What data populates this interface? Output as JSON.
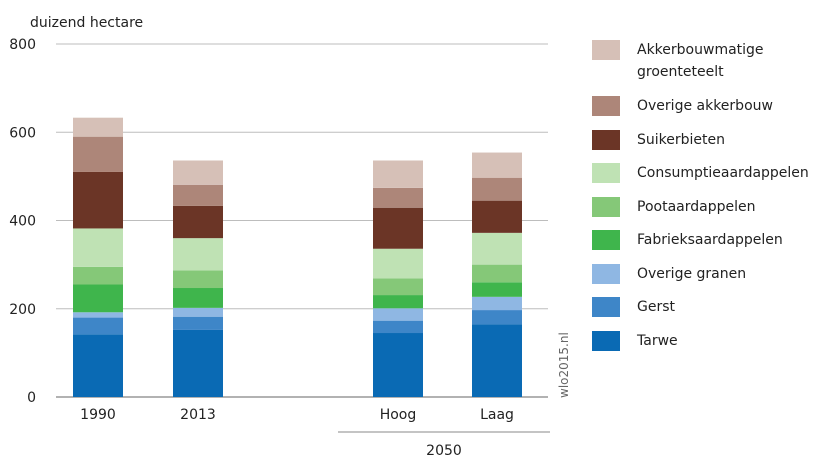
{
  "chart_data": {
    "type": "bar",
    "stacked": true,
    "ylabel": "duizend hectare",
    "ylim": [
      0,
      800
    ],
    "yticks": [
      "0",
      "200",
      "400",
      "600",
      "800"
    ],
    "categories": [
      "1990",
      "2013",
      "Hoog",
      "Laag"
    ],
    "group_label": "2050",
    "grid": true,
    "legend_position": "right",
    "source": "wlo2015.nl",
    "series": [
      {
        "name": "Tarwe",
        "color": "#0a6ab4",
        "values": [
          142,
          152,
          145,
          165
        ]
      },
      {
        "name": "Gerst",
        "color": "#3e86c8",
        "values": [
          38,
          30,
          28,
          32
        ]
      },
      {
        "name": "Overige granen",
        "color": "#8fb7e3",
        "values": [
          12,
          20,
          28,
          30
        ]
      },
      {
        "name": "Fabrieksaardappelen",
        "color": "#3fb54c",
        "values": [
          63,
          45,
          30,
          33
        ]
      },
      {
        "name": "Pootaardappelen",
        "color": "#85c878",
        "values": [
          40,
          40,
          38,
          40
        ]
      },
      {
        "name": "Consumptieaardappelen",
        "color": "#bfe2b4",
        "values": [
          87,
          73,
          67,
          72
        ]
      },
      {
        "name": "Suikerbieten",
        "color": "#6b3526",
        "values": [
          128,
          73,
          93,
          73
        ]
      },
      {
        "name": "Overige akkerbouw",
        "color": "#ad8679",
        "values": [
          80,
          48,
          45,
          52
        ]
      },
      {
        "name": "Akkerbouwmatige groenteteelt",
        "color": "#d6c0b7",
        "values": [
          43,
          55,
          62,
          57
        ]
      }
    ]
  }
}
